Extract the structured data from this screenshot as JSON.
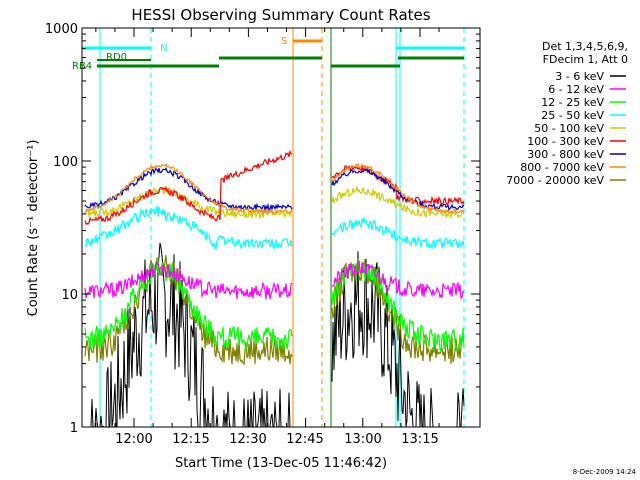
{
  "chart_data": {
    "type": "line",
    "title": "HESSI Observing Summary Count Rates",
    "xlabel": "Start Time (13-Dec-05 11:46:42)",
    "ylabel": "Count Rate (s⁻¹ detector⁻¹)",
    "y_scale": "log",
    "ylim": [
      1,
      1000
    ],
    "x_tick_labels": [
      "12:00",
      "12:15",
      "12:30",
      "12:45",
      "13:00",
      "13:15"
    ],
    "y_tick_labels": [
      "1",
      "10",
      "100",
      "1000"
    ],
    "footer_timestamp": "8-Dec-2009 14:24",
    "legend": {
      "position": "right",
      "header": [
        "Det 1,3,4,5,6,9,",
        "FDecim 1, Att 0"
      ],
      "entries": [
        {
          "label": "3 - 6 keV",
          "color": "#000000"
        },
        {
          "label": "6 - 12 keV",
          "color": "#ff00ff"
        },
        {
          "label": "12 - 25 keV",
          "color": "#00ff00"
        },
        {
          "label": "25 - 50 keV",
          "color": "#00ffff"
        },
        {
          "label": "50 - 100 keV",
          "color": "#cccc00"
        },
        {
          "label": "100 - 300 keV",
          "color": "#ff0000"
        },
        {
          "label": "300 - 800 keV",
          "color": "#0000cc"
        },
        {
          "label": "800 - 7000 keV",
          "color": "#ff8800"
        },
        {
          "label": "7000 - 20000 keV",
          "color": "#808000"
        }
      ]
    },
    "flags": [
      {
        "label": "N",
        "color": "#00ffff"
      },
      {
        "label": "RD0",
        "color": "#008000"
      },
      {
        "label": "RB4",
        "color": "#008000"
      },
      {
        "label": "S",
        "color": "#ff8800"
      }
    ]
  }
}
